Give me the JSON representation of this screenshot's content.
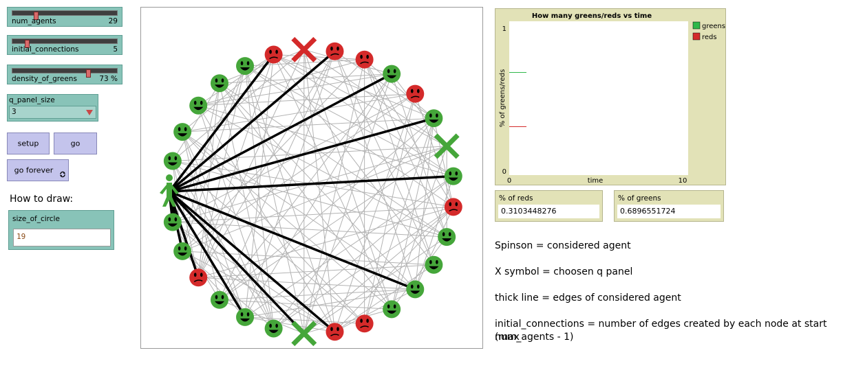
{
  "sliders": {
    "num_agents": {
      "label": "num_agents",
      "value": "29",
      "fraction": 0.21
    },
    "initial_connections": {
      "label": "initial_connections",
      "value": "5",
      "fraction": 0.12
    },
    "density_of_greens": {
      "label": "density_of_greens",
      "value": "73 %",
      "fraction": 0.73
    }
  },
  "chooser": {
    "label": "q_panel_size",
    "value": "3"
  },
  "buttons": {
    "setup": "setup",
    "go": "go",
    "go_forever": "go forever"
  },
  "how_to_draw": "How to draw:",
  "size_input": {
    "label": "size_of_circle",
    "value": "19"
  },
  "plot": {
    "title": "How many greens/reds vs time",
    "xlabel": "time",
    "ylabel": "% of greens/reds",
    "x_min": "0",
    "x_max": "10",
    "y_min": "0",
    "y_max": "1",
    "legend": {
      "greens": "greens",
      "reds": "reds"
    },
    "colors": {
      "greens": "#2fb84a",
      "reds": "#d42a2a"
    }
  },
  "chart_data": {
    "type": "line",
    "title": "How many greens/reds vs time",
    "xlabel": "time",
    "ylabel": "% of greens/reds",
    "xlim": [
      0,
      10
    ],
    "ylim": [
      0,
      1
    ],
    "legend_position": "top-right",
    "series": [
      {
        "name": "greens",
        "x": [
          0
        ],
        "y": [
          0.6896551724
        ]
      },
      {
        "name": "reds",
        "x": [
          0
        ],
        "y": [
          0.3103448276
        ]
      }
    ]
  },
  "monitors": {
    "reds": {
      "label": "% of reds",
      "value": "0.3103448276"
    },
    "greens": {
      "label": "% of greens",
      "value": "0.6896551724"
    }
  },
  "notes": {
    "line1": "Spinson = considered agent",
    "line2": "X symbol = choosen q panel",
    "line3": "thick line = edges of considered agent",
    "line4a": "initial_connections = number of edges created by each node at start (max",
    "line4b": "num_agents - 1)"
  },
  "network": {
    "node_colors": [
      "green",
      "green",
      "green",
      "green",
      "green",
      "green",
      "red",
      "red",
      "red",
      "red",
      "green",
      "red",
      "green",
      "green",
      "green",
      "red",
      "green",
      "green",
      "green",
      "green",
      "red",
      "red",
      "green",
      "green",
      "green",
      "green",
      "red",
      "green",
      "green"
    ],
    "palette": {
      "green": "#45a63a",
      "red": "#d42a2a",
      "edge": "#b3b3b3",
      "thick": "#000000"
    },
    "considered_index": 0,
    "q_panel_indices": [
      7,
      13,
      22
    ]
  }
}
